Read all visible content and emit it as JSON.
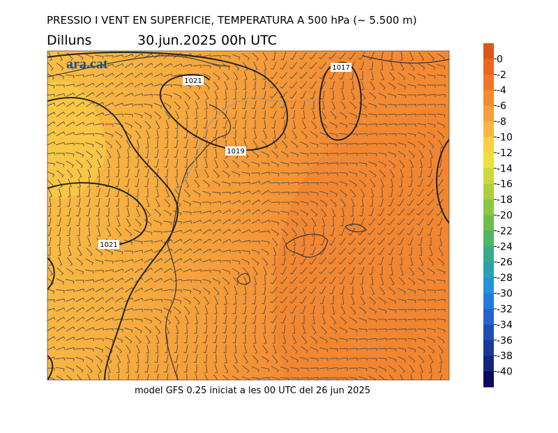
{
  "title": "PRESSIO I VENT EN SUPERFICIE, TEMPERATURA A 500 hPa (~ 5.500 m)",
  "day": "Dilluns",
  "date": "30.jun.2025 00h UTC",
  "logo": "ara.cat",
  "footer": "model GFS 0.25 iniciat a les 00 UTC del 26 jun 2025",
  "isobar_labels": [
    "1021",
    "1017",
    "1019",
    "1021"
  ],
  "colorbar": {
    "ticks": [
      0,
      -2,
      -4,
      -6,
      -8,
      -10,
      -12,
      -14,
      -16,
      -18,
      -20,
      -22,
      -24,
      -26,
      -28,
      -30,
      -32,
      -34,
      -36,
      -38,
      -40
    ],
    "colors": [
      "#dd5418",
      "#ee6420",
      "#f27629",
      "#f58a31",
      "#f79e3a",
      "#f9b443",
      "#fbcf45",
      "#ece03e",
      "#cdd83c",
      "#acd03c",
      "#8ac742",
      "#6cbf4d",
      "#50b565",
      "#3aa987",
      "#2aa0b2",
      "#2492d8",
      "#2479df",
      "#2464cb",
      "#1e4db4",
      "#1a3999",
      "#13257f",
      "#0c0a5e"
    ]
  }
}
